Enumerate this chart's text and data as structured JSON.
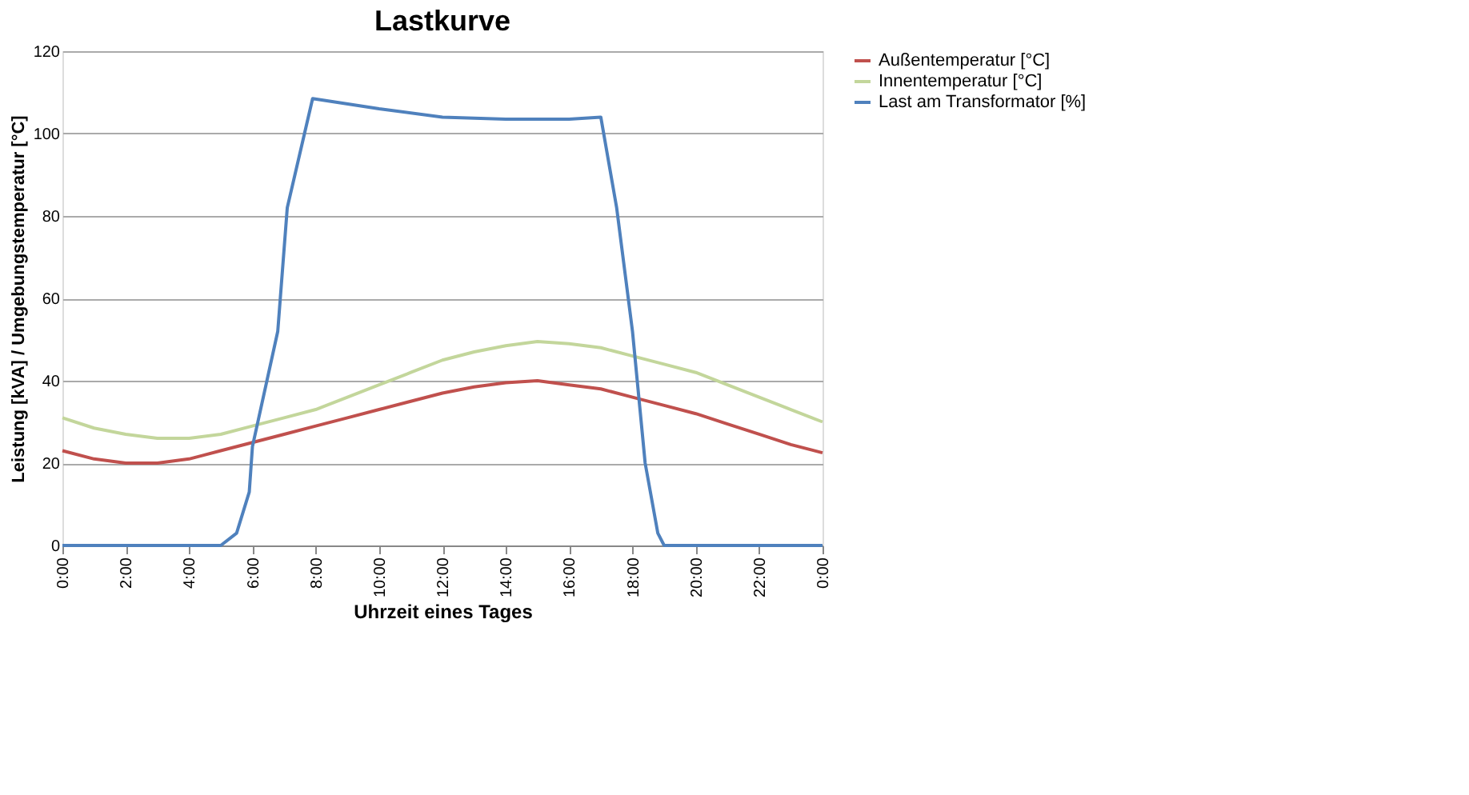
{
  "chart_data": {
    "type": "line",
    "title": "Lastkurve",
    "xlabel": "Uhrzeit eines Tages",
    "ylabel": "Leistung [kVA] / Umgebungstemperatur [°C]",
    "xlim": [
      0,
      24
    ],
    "ylim": [
      0,
      120
    ],
    "yticks": [
      0,
      20,
      40,
      60,
      80,
      100,
      120
    ],
    "xticks": [
      {
        "value": 0,
        "label": "0:00"
      },
      {
        "value": 2,
        "label": "2:00"
      },
      {
        "value": 4,
        "label": "4:00"
      },
      {
        "value": 6,
        "label": "6:00"
      },
      {
        "value": 8,
        "label": "8:00"
      },
      {
        "value": 10,
        "label": "10:00"
      },
      {
        "value": 12,
        "label": "12:00"
      },
      {
        "value": 14,
        "label": "14:00"
      },
      {
        "value": 16,
        "label": "16:00"
      },
      {
        "value": 18,
        "label": "18:00"
      },
      {
        "value": 20,
        "label": "20:00"
      },
      {
        "value": 22,
        "label": "22:00"
      },
      {
        "value": 24,
        "label": "0:00"
      }
    ],
    "grid": "y",
    "legend": "right",
    "marker": "none",
    "line_style": "solid",
    "series": [
      {
        "name": "Außentemperatur [°C]",
        "color": "#c0504d",
        "x": [
          0,
          1,
          2,
          3,
          4,
          5,
          6,
          7,
          8,
          9,
          10,
          11,
          12,
          13,
          14,
          15,
          16,
          17,
          18,
          19,
          20,
          21,
          22,
          23,
          24
        ],
        "values": [
          23,
          21,
          20,
          20,
          21,
          23,
          25,
          27,
          29,
          31,
          33,
          35,
          37,
          38.5,
          39.5,
          40,
          39,
          38,
          36,
          34,
          32,
          29.5,
          27,
          24.5,
          22.5
        ]
      },
      {
        "name": "Innentemperatur [°C]",
        "color": "#c3d69b",
        "x": [
          0,
          1,
          2,
          3,
          4,
          5,
          6,
          7,
          8,
          9,
          10,
          11,
          12,
          13,
          14,
          15,
          16,
          17,
          18,
          19,
          20,
          21,
          22,
          23,
          24
        ],
        "values": [
          31,
          28.5,
          27,
          26,
          26,
          27,
          29,
          31,
          33,
          36,
          39,
          42,
          45,
          47,
          48.5,
          49.5,
          49,
          48,
          46,
          44,
          42,
          39,
          36,
          33,
          30
        ]
      },
      {
        "name": "Last am Transformator [%]",
        "color": "#4f81bd",
        "x": [
          0,
          5,
          5.5,
          5.9,
          6.0,
          6.8,
          7.1,
          7.9,
          10,
          12,
          14,
          16,
          17,
          17.5,
          18,
          18.4,
          18.8,
          19,
          24
        ],
        "values": [
          0,
          0,
          3,
          13,
          24,
          52,
          82,
          108.5,
          106,
          104,
          103.5,
          103.5,
          104,
          82,
          52,
          20,
          3,
          0,
          0
        ]
      }
    ]
  }
}
